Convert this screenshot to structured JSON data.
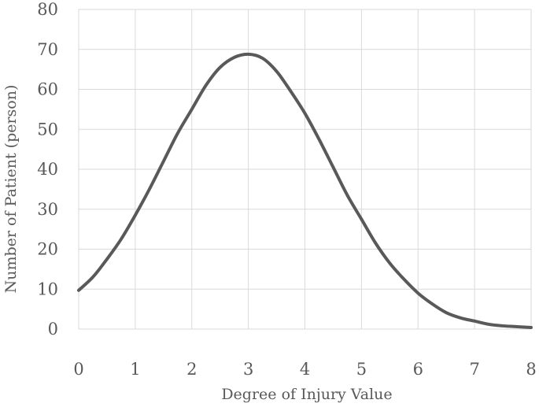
{
  "chart_data": {
    "type": "line",
    "title": "",
    "xlabel": "Degree of Injury Value",
    "ylabel": "Number of  Patient (person)",
    "xlim": [
      0,
      8
    ],
    "ylim": [
      0,
      80
    ],
    "x_ticks": [
      "0",
      "1",
      "2",
      "3",
      "4",
      "5",
      "6",
      "7",
      "8"
    ],
    "y_ticks": [
      "0",
      "10",
      "20",
      "30",
      "40",
      "50",
      "60",
      "70",
      "80"
    ],
    "grid": true,
    "legend": "none",
    "series": [
      {
        "color": "#595959",
        "x": [
          0,
          0.25,
          0.5,
          0.75,
          1,
          1.25,
          1.5,
          1.75,
          2,
          2.25,
          2.5,
          2.75,
          3,
          3.25,
          3.5,
          3.75,
          4,
          4.25,
          4.5,
          4.75,
          5,
          5.25,
          5.5,
          5.75,
          6,
          6.25,
          6.5,
          6.75,
          7,
          7.25,
          7.5,
          7.75,
          8
        ],
        "y": [
          9.7,
          13,
          17.5,
          22.5,
          28.5,
          35,
          42,
          49,
          55,
          61,
          65.5,
          68,
          68.8,
          67.8,
          64.5,
          59.5,
          54,
          47.5,
          40.5,
          33.5,
          27.5,
          21.5,
          16.5,
          12.5,
          9,
          6.3,
          4.1,
          2.8,
          2,
          1.2,
          0.8,
          0.6,
          0.4
        ]
      }
    ]
  }
}
